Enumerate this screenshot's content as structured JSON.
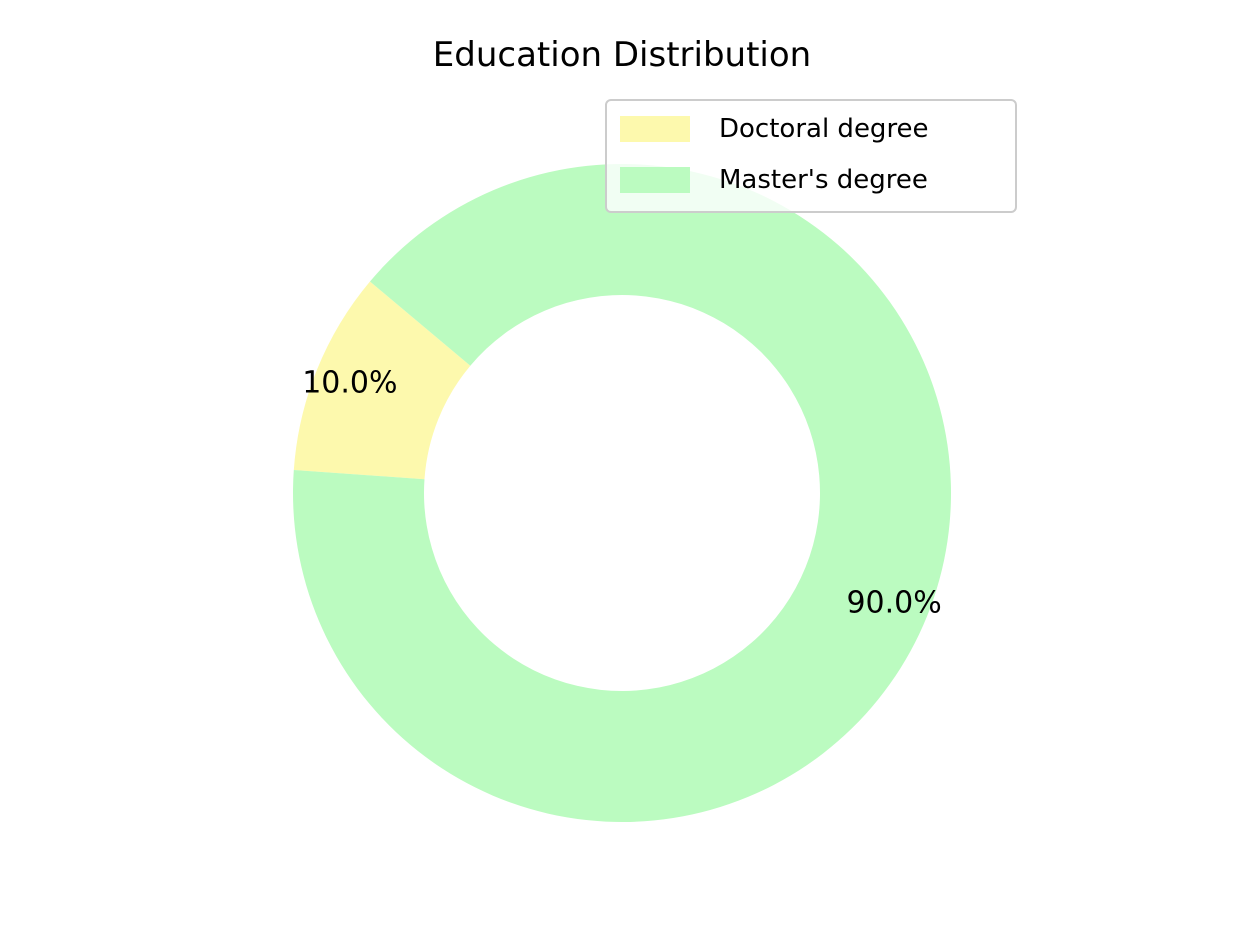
{
  "chart_data": {
    "type": "pie",
    "title": "Education Distribution",
    "categories": [
      "Doctoral degree",
      "Master's degree"
    ],
    "values": [
      10.0,
      90.0
    ],
    "value_labels": [
      "10.0%",
      "90.0%"
    ],
    "colors": [
      "#fdf9ad",
      "#bbfbc0"
    ],
    "donut": true,
    "legend_position": "top-right"
  }
}
